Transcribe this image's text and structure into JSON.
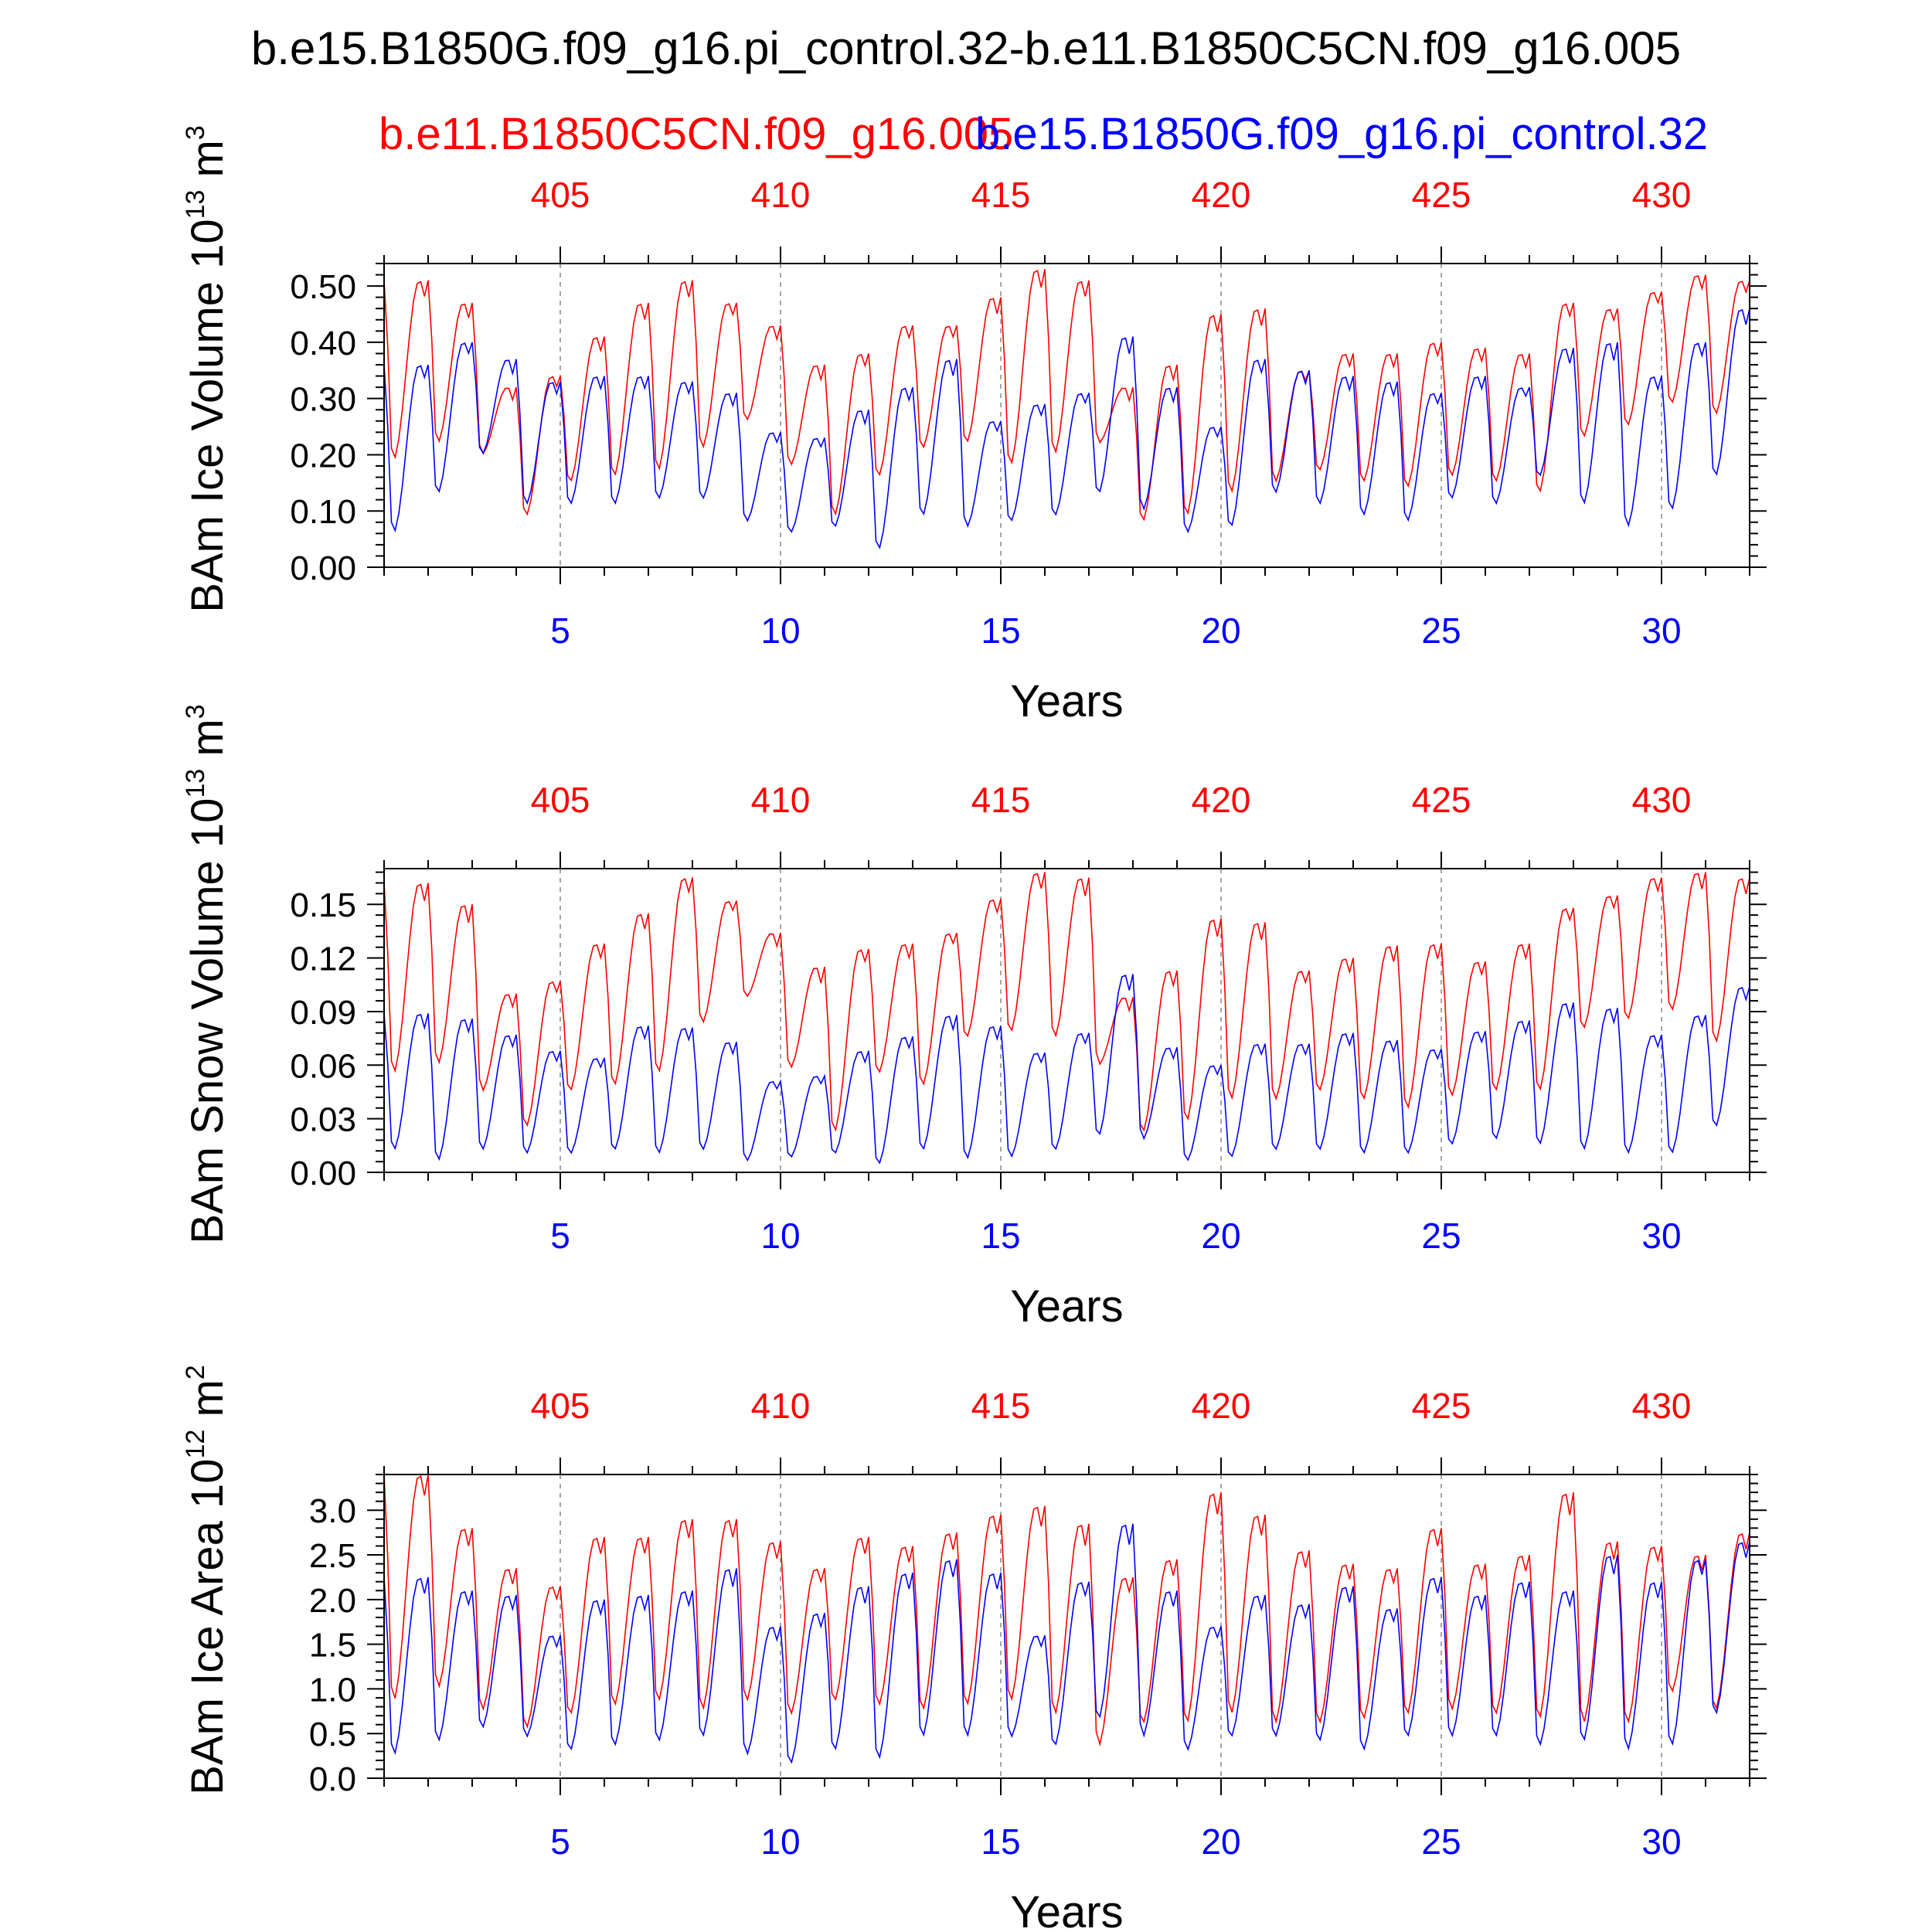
{
  "title": "b.e15.B1850G.f09_g16.pi_control.32-b.e11.B1850C5CN.f09_g16.005",
  "legend": {
    "red_label": "b.e11.B1850C5CN.f09_g16.005",
    "blue_label": "b.e15.B1850G.f09_g16.pi_control.32"
  },
  "colors": {
    "red": "#ff0000",
    "blue": "#0000ff",
    "axis": "#000000",
    "grid": "#888888"
  },
  "chart_data": [
    {
      "type": "line",
      "ylabel_main": "BAm Ice Volume 10",
      "ylabel_exp": "13",
      "ylabel_unit": "m",
      "ylabel_unit_exp": "3",
      "xlabel": "Years",
      "x_range": [
        1,
        32
      ],
      "ylim": [
        0,
        0.54
      ],
      "yticks": [
        0.0,
        0.1,
        0.2,
        0.3,
        0.4,
        0.5
      ],
      "yticklabels": [
        "0.00",
        "0.10",
        "0.20",
        "0.30",
        "0.40",
        "0.50"
      ],
      "bottom_ticks": [
        5,
        10,
        15,
        20,
        25,
        30
      ],
      "top_ticks": [
        405,
        410,
        415,
        420,
        425,
        430
      ],
      "top_offset": 400,
      "series": [
        {
          "color": "red",
          "peaks": [
            0.51,
            0.47,
            0.32,
            0.34,
            0.41,
            0.47,
            0.51,
            0.47,
            0.43,
            0.36,
            0.38,
            0.43,
            0.43,
            0.48,
            0.53,
            0.51,
            0.32,
            0.36,
            0.45,
            0.46,
            0.35,
            0.38,
            0.38,
            0.4,
            0.39,
            0.38,
            0.47,
            0.46,
            0.49,
            0.52,
            0.51,
            0.52
          ],
          "troughs": [
            0.19,
            0.22,
            0.2,
            0.09,
            0.15,
            0.16,
            0.17,
            0.21,
            0.26,
            0.18,
            0.09,
            0.16,
            0.21,
            0.22,
            0.18,
            0.2,
            0.22,
            0.08,
            0.09,
            0.13,
            0.15,
            0.17,
            0.15,
            0.14,
            0.16,
            0.15,
            0.13,
            0.23,
            0.25,
            0.29,
            0.27,
            0.3
          ]
        },
        {
          "color": "blue",
          "peaks": [
            0.36,
            0.4,
            0.37,
            0.33,
            0.34,
            0.34,
            0.33,
            0.31,
            0.24,
            0.23,
            0.28,
            0.32,
            0.37,
            0.26,
            0.29,
            0.31,
            0.41,
            0.32,
            0.25,
            0.37,
            0.35,
            0.34,
            0.33,
            0.31,
            0.34,
            0.32,
            0.39,
            0.4,
            0.34,
            0.4,
            0.46,
            0.4
          ],
          "troughs": [
            0.06,
            0.13,
            0.2,
            0.11,
            0.11,
            0.11,
            0.12,
            0.12,
            0.08,
            0.06,
            0.07,
            0.03,
            0.09,
            0.07,
            0.08,
            0.09,
            0.13,
            0.1,
            0.06,
            0.07,
            0.13,
            0.11,
            0.09,
            0.08,
            0.12,
            0.11,
            0.16,
            0.11,
            0.07,
            0.1,
            0.16,
            0.17
          ]
        }
      ]
    },
    {
      "type": "line",
      "ylabel_main": "BAm Snow Volume 10",
      "ylabel_exp": "13",
      "ylabel_unit": "m",
      "ylabel_unit_exp": "3",
      "xlabel": "Years",
      "x_range": [
        1,
        32
      ],
      "ylim": [
        0,
        0.17
      ],
      "yticks": [
        0.0,
        0.03,
        0.06,
        0.09,
        0.12,
        0.15
      ],
      "yticklabels": [
        "0.00",
        "0.03",
        "0.06",
        "0.09",
        "0.12",
        "0.15"
      ],
      "bottom_ticks": [
        5,
        10,
        15,
        20,
        25,
        30
      ],
      "top_ticks": [
        405,
        410,
        415,
        420,
        425,
        430
      ],
      "top_offset": 400,
      "series": [
        {
          "color": "red",
          "peaks": [
            0.162,
            0.15,
            0.1,
            0.107,
            0.128,
            0.145,
            0.165,
            0.152,
            0.134,
            0.115,
            0.125,
            0.128,
            0.134,
            0.153,
            0.168,
            0.165,
            0.098,
            0.113,
            0.142,
            0.14,
            0.113,
            0.12,
            0.127,
            0.128,
            0.118,
            0.128,
            0.148,
            0.155,
            0.165,
            0.168,
            0.165,
            0.165
          ],
          "troughs": [
            0.055,
            0.06,
            0.045,
            0.025,
            0.045,
            0.048,
            0.055,
            0.083,
            0.098,
            0.058,
            0.022,
            0.055,
            0.048,
            0.075,
            0.078,
            0.075,
            0.06,
            0.022,
            0.028,
            0.04,
            0.04,
            0.045,
            0.04,
            0.035,
            0.042,
            0.045,
            0.045,
            0.08,
            0.085,
            0.09,
            0.072,
            0.072
          ]
        },
        {
          "color": "blue",
          "peaks": [
            0.089,
            0.086,
            0.077,
            0.068,
            0.064,
            0.082,
            0.081,
            0.073,
            0.051,
            0.054,
            0.068,
            0.076,
            0.088,
            0.082,
            0.067,
            0.078,
            0.111,
            0.07,
            0.06,
            0.072,
            0.072,
            0.078,
            0.074,
            0.069,
            0.079,
            0.085,
            0.095,
            0.092,
            0.077,
            0.088,
            0.104,
            0.118
          ],
          "troughs": [
            0.012,
            0.006,
            0.012,
            0.01,
            0.01,
            0.012,
            0.01,
            0.012,
            0.006,
            0.008,
            0.01,
            0.004,
            0.012,
            0.007,
            0.008,
            0.012,
            0.02,
            0.018,
            0.006,
            0.008,
            0.012,
            0.012,
            0.01,
            0.01,
            0.015,
            0.018,
            0.015,
            0.012,
            0.01,
            0.01,
            0.025,
            0.03
          ]
        }
      ]
    },
    {
      "type": "line",
      "ylabel_main": "BAm Ice Area 10",
      "ylabel_exp": "12",
      "ylabel_unit": "m",
      "ylabel_unit_exp": "2",
      "xlabel": "Years",
      "x_range": [
        1,
        32
      ],
      "ylim": [
        0,
        3.4
      ],
      "yticks": [
        0.0,
        0.5,
        1.0,
        1.5,
        2.0,
        2.5,
        3.0
      ],
      "yticklabels": [
        "0.0",
        "0.5",
        "1.0",
        "1.5",
        "2.0",
        "2.5",
        "3.0"
      ],
      "bottom_ticks": [
        5,
        10,
        15,
        20,
        25,
        30
      ],
      "top_ticks": [
        405,
        410,
        415,
        420,
        425,
        430
      ],
      "top_offset": 400,
      "series": [
        {
          "color": "red",
          "peaks": [
            3.4,
            2.8,
            2.35,
            2.15,
            2.7,
            2.7,
            2.9,
            2.9,
            2.65,
            2.35,
            2.7,
            2.6,
            2.75,
            2.95,
            3.05,
            2.85,
            2.25,
            2.45,
            3.2,
            2.95,
            2.55,
            2.4,
            2.35,
            2.8,
            2.4,
            2.5,
            3.2,
            2.65,
            2.6,
            2.5,
            2.75,
            2.6
          ],
          "troughs": [
            0.85,
            1.0,
            0.75,
            0.55,
            0.7,
            0.8,
            0.85,
            0.75,
            0.85,
            0.7,
            0.85,
            0.8,
            0.75,
            0.8,
            0.85,
            0.7,
            0.35,
            0.6,
            0.6,
            0.7,
            0.6,
            0.6,
            0.65,
            0.7,
            0.75,
            0.7,
            0.65,
            0.6,
            0.6,
            0.95,
            0.75,
            0.85
          ]
        },
        {
          "color": "blue",
          "peaks": [
            2.25,
            2.1,
            2.05,
            1.6,
            2.0,
            2.05,
            2.1,
            2.35,
            1.7,
            1.85,
            2.15,
            2.3,
            2.45,
            2.3,
            1.6,
            2.2,
            2.85,
            2.1,
            1.7,
            2.05,
            1.95,
            2.15,
            1.9,
            2.25,
            2.05,
            2.2,
            2.1,
            2.5,
            2.2,
            2.45,
            2.65,
            2.65
          ],
          "troughs": [
            0.25,
            0.4,
            0.55,
            0.45,
            0.3,
            0.35,
            0.4,
            0.45,
            0.25,
            0.15,
            0.3,
            0.2,
            0.45,
            0.45,
            0.45,
            0.35,
            0.65,
            0.45,
            0.3,
            0.45,
            0.45,
            0.4,
            0.3,
            0.45,
            0.45,
            0.45,
            0.35,
            0.4,
            0.3,
            0.35,
            0.7,
            0.8
          ]
        }
      ]
    }
  ]
}
